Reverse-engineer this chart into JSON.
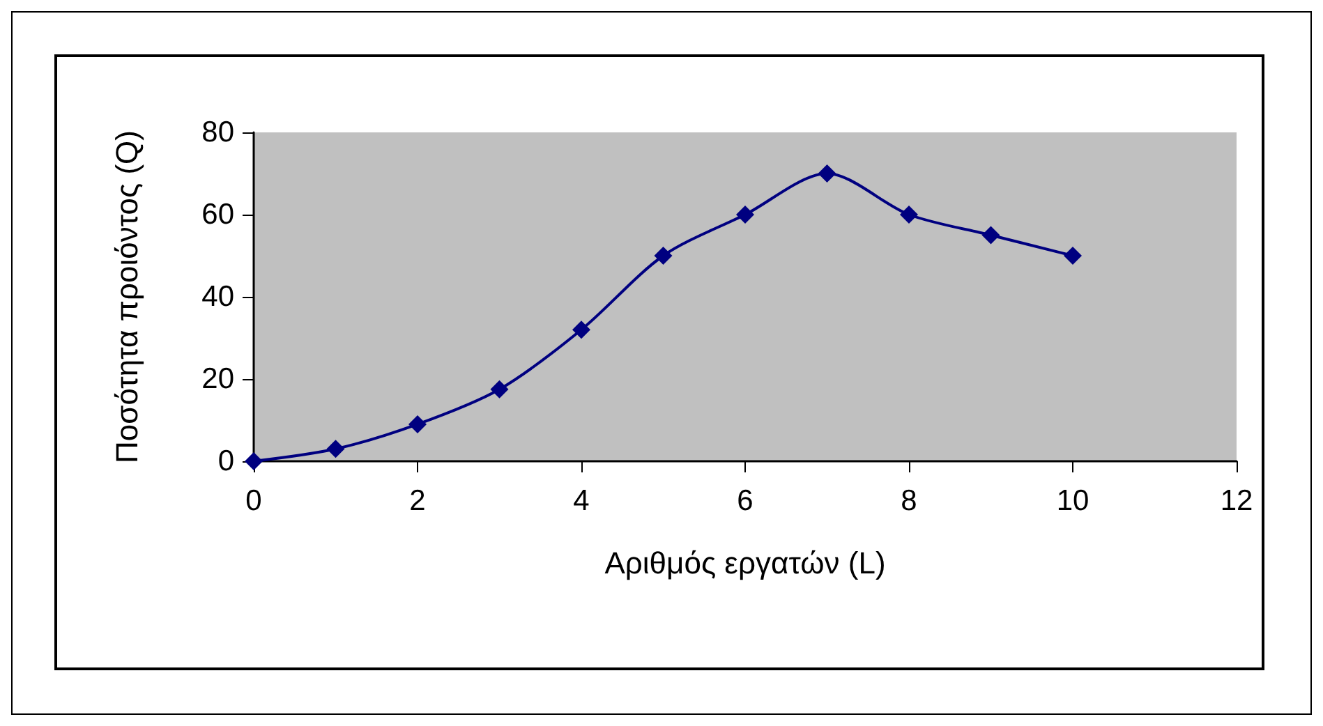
{
  "chart_data": {
    "type": "line",
    "xlabel": "Αριθμός εργατών (L)",
    "ylabel": "Ποσότητα προιόντος (Q)",
    "x": [
      0,
      1,
      2,
      3,
      4,
      5,
      6,
      7,
      8,
      9,
      10
    ],
    "series": [
      {
        "color": "#000080",
        "values": [
          0,
          3,
          9,
          17.5,
          32,
          50,
          60,
          70,
          60,
          55,
          50
        ]
      }
    ],
    "xlim": [
      0,
      12
    ],
    "xticks": [
      0,
      2,
      4,
      6,
      8,
      10,
      12
    ],
    "ylim": [
      0,
      80
    ],
    "yticks": [
      0,
      20,
      40,
      60,
      80
    ],
    "grid": false,
    "marker": "diamond",
    "line_style": "solid"
  }
}
